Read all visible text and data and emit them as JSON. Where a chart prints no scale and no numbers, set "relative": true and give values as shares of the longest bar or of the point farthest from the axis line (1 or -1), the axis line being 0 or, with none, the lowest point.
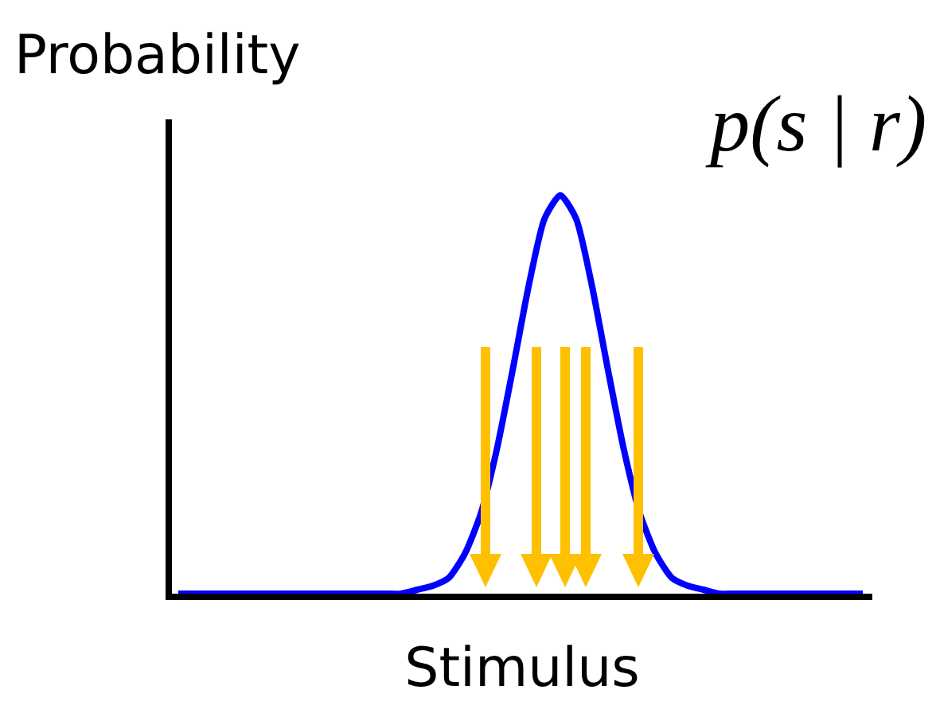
{
  "chart_data": {
    "type": "line",
    "title": "p(s | r)",
    "xlabel": "Stimulus",
    "ylabel": "Probability",
    "relative": true,
    "grid": false,
    "marker": "none",
    "line_style": "solid",
    "categories": [
      null,
      null,
      null,
      null,
      null,
      null,
      null,
      null,
      null,
      null,
      null,
      null,
      null,
      null,
      null,
      null,
      null,
      null,
      null,
      null,
      null,
      null,
      null,
      null,
      null,
      null,
      null,
      null,
      null,
      null,
      null,
      null,
      null,
      null,
      null,
      null,
      null,
      null,
      null,
      null,
      null,
      null,
      null,
      null
    ],
    "series": [
      {
        "color": "#0000ff",
        "values": [
          0,
          0,
          0,
          0,
          0,
          0,
          0,
          0,
          0,
          0,
          0,
          0,
          0,
          0,
          0,
          0.01,
          0.02,
          0.04,
          0.1,
          0.2,
          0.36,
          0.56,
          0.77,
          0.94,
          1,
          0.94,
          0.77,
          0.56,
          0.36,
          0.2,
          0.1,
          0.04,
          0.02,
          0.01,
          0,
          0,
          0,
          0,
          0,
          0,
          0,
          0,
          0,
          0
        ]
      }
    ]
  }
}
